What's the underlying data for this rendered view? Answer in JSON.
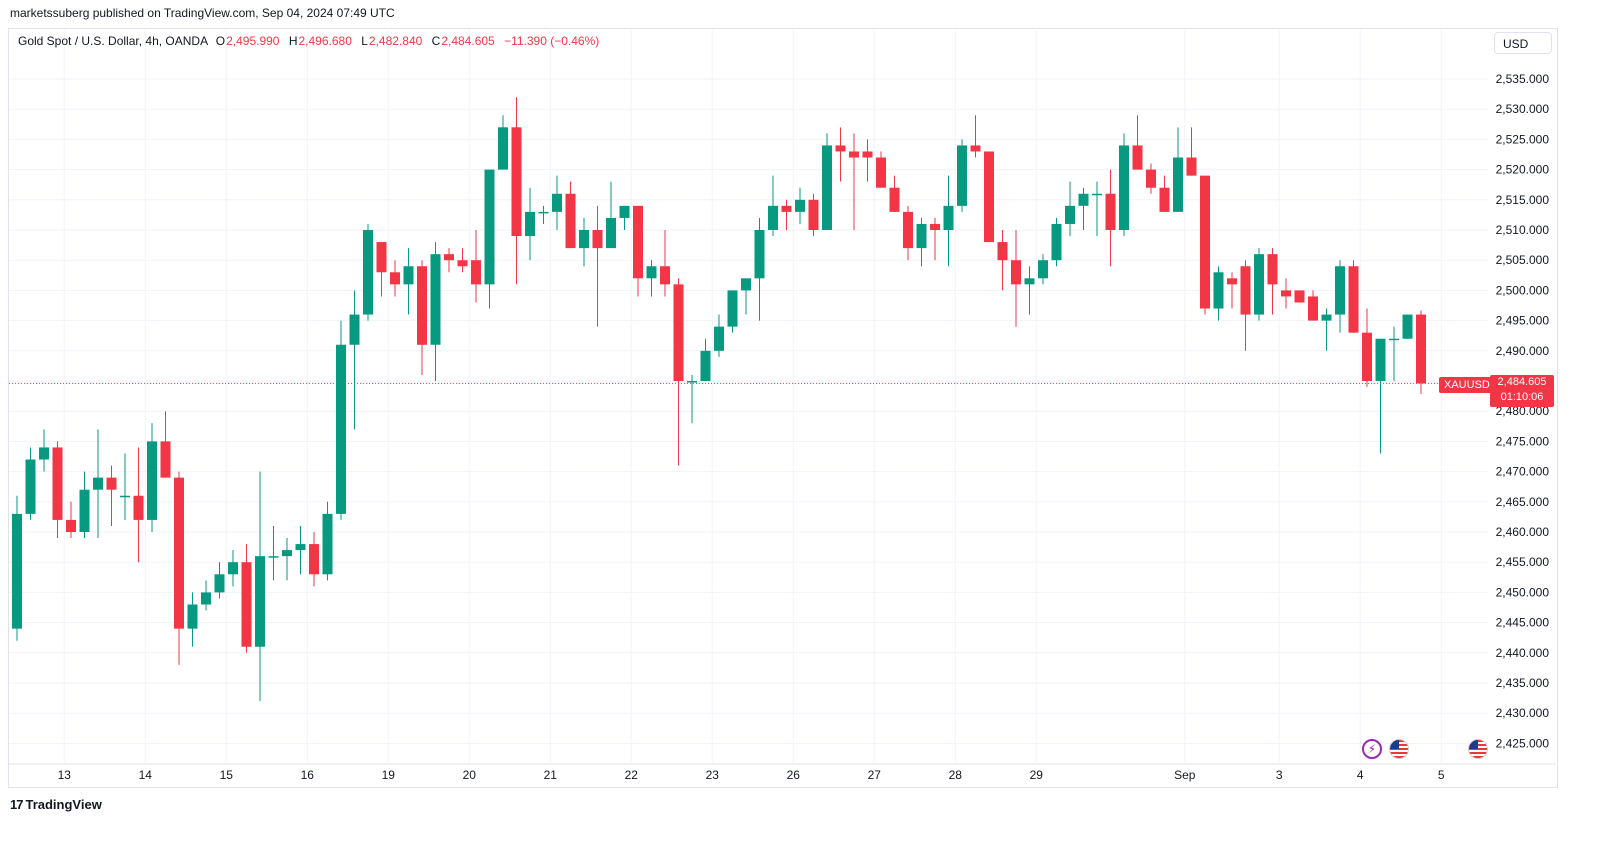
{
  "header": {
    "publisher_text": "marketssuberg published on TradingView.com, Sep 04, 2024 07:49 UTC"
  },
  "legend": {
    "symbol_text": "Gold Spot / U.S. Dollar, 4h, OANDA",
    "open_label": "O",
    "open_value": "2,495.990",
    "high_label": "H",
    "high_value": "2,496.680",
    "low_label": "L",
    "low_value": "2,482.840",
    "close_label": "C",
    "close_value": "2,484.605",
    "change_text": "−11.390 (−0.46%)"
  },
  "currency_selector": {
    "label": "USD"
  },
  "price_tag": {
    "symbol": "XAUUSD",
    "price": "2,484.605",
    "countdown": "01:10:06"
  },
  "events": {
    "flash_icon": "lightning-icon",
    "flag_icon": "us-flag-icon"
  },
  "footer": {
    "brand": "TradingView",
    "logo_icon": "tradingview-logo-icon",
    "logo_glyph": "17"
  },
  "colors": {
    "up": "#089981",
    "down": "#f23645",
    "grid": "#f0f3fa",
    "axis_text": "#131722"
  },
  "chart_data": {
    "type": "candlestick",
    "title": "Gold Spot / U.S. Dollar, 4h, OANDA",
    "ylabel": "USD",
    "ylim": [
      2422,
      2539
    ],
    "y_ticks": [
      2425,
      2430,
      2435,
      2440,
      2445,
      2450,
      2455,
      2460,
      2465,
      2470,
      2475,
      2480,
      2485,
      2490,
      2495,
      2500,
      2505,
      2510,
      2515,
      2520,
      2525,
      2530,
      2535
    ],
    "y_tick_labels": [
      "2,425.000",
      "2,430.000",
      "2,435.000",
      "2,440.000",
      "2,445.000",
      "2,450.000",
      "2,455.000",
      "2,460.000",
      "2,465.000",
      "2,470.000",
      "2,475.000",
      "2,480.000",
      "2,485.000",
      "2,490.000",
      "2,495.000",
      "2,500.000",
      "2,505.000",
      "2,510.000",
      "2,515.000",
      "2,520.000",
      "2,525.000",
      "2,530.000",
      "2,535.000"
    ],
    "x_ticks": [
      {
        "label": "13",
        "bar": 3.5
      },
      {
        "label": "14",
        "bar": 9.5
      },
      {
        "label": "15",
        "bar": 15.5
      },
      {
        "label": "16",
        "bar": 21.5
      },
      {
        "label": "19",
        "bar": 27.5
      },
      {
        "label": "20",
        "bar": 33.5
      },
      {
        "label": "21",
        "bar": 39.5
      },
      {
        "label": "22",
        "bar": 45.5
      },
      {
        "label": "23",
        "bar": 51.5
      },
      {
        "label": "26",
        "bar": 57.5
      },
      {
        "label": "27",
        "bar": 63.5
      },
      {
        "label": "28",
        "bar": 69.5
      },
      {
        "label": "29",
        "bar": 75.5
      },
      {
        "label": "Sep",
        "bar": 86.5
      },
      {
        "label": "3",
        "bar": 93.5
      },
      {
        "label": "4",
        "bar": 99.5
      },
      {
        "label": "5",
        "bar": 105.5
      }
    ],
    "last_price": 2484.605,
    "candles": [
      {
        "o": 2444,
        "h": 2466,
        "l": 2442,
        "c": 2463
      },
      {
        "o": 2463,
        "h": 2474,
        "l": 2462,
        "c": 2472
      },
      {
        "o": 2472,
        "h": 2477,
        "l": 2470,
        "c": 2474
      },
      {
        "o": 2474,
        "h": 2475,
        "l": 2459,
        "c": 2462
      },
      {
        "o": 2462,
        "h": 2465,
        "l": 2459,
        "c": 2460
      },
      {
        "o": 2460,
        "h": 2470,
        "l": 2459,
        "c": 2467
      },
      {
        "o": 2467,
        "h": 2477,
        "l": 2459,
        "c": 2469
      },
      {
        "o": 2469,
        "h": 2471,
        "l": 2461,
        "c": 2467
      },
      {
        "o": 2466,
        "h": 2473,
        "l": 2462,
        "c": 2466
      },
      {
        "o": 2466,
        "h": 2474,
        "l": 2455,
        "c": 2462
      },
      {
        "o": 2462,
        "h": 2478,
        "l": 2460,
        "c": 2475
      },
      {
        "o": 2475,
        "h": 2480,
        "l": 2469,
        "c": 2469
      },
      {
        "o": 2469,
        "h": 2470,
        "l": 2438,
        "c": 2444
      },
      {
        "o": 2444,
        "h": 2450,
        "l": 2441,
        "c": 2448
      },
      {
        "o": 2448,
        "h": 2452,
        "l": 2447,
        "c": 2450
      },
      {
        "o": 2450,
        "h": 2455,
        "l": 2449,
        "c": 2453
      },
      {
        "o": 2453,
        "h": 2457,
        "l": 2451,
        "c": 2455
      },
      {
        "o": 2455,
        "h": 2458,
        "l": 2440,
        "c": 2441
      },
      {
        "o": 2441,
        "h": 2470,
        "l": 2432,
        "c": 2456
      },
      {
        "o": 2456,
        "h": 2461,
        "l": 2452,
        "c": 2456
      },
      {
        "o": 2456,
        "h": 2459,
        "l": 2452,
        "c": 2457
      },
      {
        "o": 2457,
        "h": 2461,
        "l": 2453,
        "c": 2458
      },
      {
        "o": 2458,
        "h": 2460,
        "l": 2451,
        "c": 2453
      },
      {
        "o": 2453,
        "h": 2465,
        "l": 2452,
        "c": 2463
      },
      {
        "o": 2463,
        "h": 2495,
        "l": 2462,
        "c": 2491
      },
      {
        "o": 2491,
        "h": 2500,
        "l": 2477,
        "c": 2496
      },
      {
        "o": 2496,
        "h": 2511,
        "l": 2495,
        "c": 2510
      },
      {
        "o": 2508,
        "h": 2508,
        "l": 2499,
        "c": 2503
      },
      {
        "o": 2503,
        "h": 2505,
        "l": 2499,
        "c": 2501
      },
      {
        "o": 2501,
        "h": 2507,
        "l": 2496,
        "c": 2504
      },
      {
        "o": 2504,
        "h": 2505,
        "l": 2486,
        "c": 2491
      },
      {
        "o": 2491,
        "h": 2508,
        "l": 2485,
        "c": 2506
      },
      {
        "o": 2506,
        "h": 2507,
        "l": 2503,
        "c": 2505
      },
      {
        "o": 2505,
        "h": 2507,
        "l": 2503,
        "c": 2504
      },
      {
        "o": 2505,
        "h": 2510,
        "l": 2498,
        "c": 2501
      },
      {
        "o": 2501,
        "h": 2520,
        "l": 2497,
        "c": 2520
      },
      {
        "o": 2520,
        "h": 2529,
        "l": 2520,
        "c": 2527
      },
      {
        "o": 2527,
        "h": 2532,
        "l": 2501,
        "c": 2509
      },
      {
        "o": 2509,
        "h": 2517,
        "l": 2505,
        "c": 2513
      },
      {
        "o": 2513,
        "h": 2514,
        "l": 2511,
        "c": 2513
      },
      {
        "o": 2513,
        "h": 2519,
        "l": 2510,
        "c": 2516
      },
      {
        "o": 2516,
        "h": 2518,
        "l": 2507,
        "c": 2507
      },
      {
        "o": 2507,
        "h": 2512,
        "l": 2504,
        "c": 2510
      },
      {
        "o": 2510,
        "h": 2514,
        "l": 2494,
        "c": 2507
      },
      {
        "o": 2507,
        "h": 2518,
        "l": 2507,
        "c": 2512
      },
      {
        "o": 2512,
        "h": 2514,
        "l": 2510,
        "c": 2514
      },
      {
        "o": 2514,
        "h": 2514,
        "l": 2499,
        "c": 2502
      },
      {
        "o": 2502,
        "h": 2505,
        "l": 2499,
        "c": 2504
      },
      {
        "o": 2504,
        "h": 2510,
        "l": 2499,
        "c": 2501
      },
      {
        "o": 2501,
        "h": 2502,
        "l": 2471,
        "c": 2485
      },
      {
        "o": 2485,
        "h": 2486,
        "l": 2478,
        "c": 2485
      },
      {
        "o": 2485,
        "h": 2492,
        "l": 2485,
        "c": 2490
      },
      {
        "o": 2490,
        "h": 2496,
        "l": 2489,
        "c": 2494
      },
      {
        "o": 2494,
        "h": 2500,
        "l": 2493,
        "c": 2500
      },
      {
        "o": 2500,
        "h": 2502,
        "l": 2496,
        "c": 2502
      },
      {
        "o": 2502,
        "h": 2512,
        "l": 2495,
        "c": 2510
      },
      {
        "o": 2510,
        "h": 2519,
        "l": 2509,
        "c": 2514
      },
      {
        "o": 2514,
        "h": 2515,
        "l": 2510,
        "c": 2513
      },
      {
        "o": 2513,
        "h": 2517,
        "l": 2511,
        "c": 2515
      },
      {
        "o": 2515,
        "h": 2516,
        "l": 2509,
        "c": 2510
      },
      {
        "o": 2510,
        "h": 2526,
        "l": 2510,
        "c": 2524
      },
      {
        "o": 2524,
        "h": 2527,
        "l": 2518,
        "c": 2523
      },
      {
        "o": 2523,
        "h": 2526,
        "l": 2510,
        "c": 2522
      },
      {
        "o": 2523,
        "h": 2525,
        "l": 2518,
        "c": 2522
      },
      {
        "o": 2522,
        "h": 2523,
        "l": 2517,
        "c": 2517
      },
      {
        "o": 2517,
        "h": 2519,
        "l": 2513,
        "c": 2513
      },
      {
        "o": 2513,
        "h": 2514,
        "l": 2505,
        "c": 2507
      },
      {
        "o": 2507,
        "h": 2512,
        "l": 2504,
        "c": 2511
      },
      {
        "o": 2511,
        "h": 2512,
        "l": 2505,
        "c": 2510
      },
      {
        "o": 2510,
        "h": 2519,
        "l": 2504,
        "c": 2514
      },
      {
        "o": 2514,
        "h": 2525,
        "l": 2513,
        "c": 2524
      },
      {
        "o": 2524,
        "h": 2529,
        "l": 2522,
        "c": 2523
      },
      {
        "o": 2523,
        "h": 2523,
        "l": 2508,
        "c": 2508
      },
      {
        "o": 2508,
        "h": 2510,
        "l": 2500,
        "c": 2505
      },
      {
        "o": 2505,
        "h": 2510,
        "l": 2494,
        "c": 2501
      },
      {
        "o": 2501,
        "h": 2504,
        "l": 2496,
        "c": 2502
      },
      {
        "o": 2502,
        "h": 2506,
        "l": 2501,
        "c": 2505
      },
      {
        "o": 2505,
        "h": 2512,
        "l": 2504,
        "c": 2511
      },
      {
        "o": 2511,
        "h": 2518,
        "l": 2509,
        "c": 2514
      },
      {
        "o": 2514,
        "h": 2517,
        "l": 2510,
        "c": 2516
      },
      {
        "o": 2516,
        "h": 2518,
        "l": 2509,
        "c": 2516
      },
      {
        "o": 2516,
        "h": 2520,
        "l": 2504,
        "c": 2510
      },
      {
        "o": 2510,
        "h": 2526,
        "l": 2509,
        "c": 2524
      },
      {
        "o": 2524,
        "h": 2529,
        "l": 2520,
        "c": 2520
      },
      {
        "o": 2520,
        "h": 2521,
        "l": 2516,
        "c": 2517
      },
      {
        "o": 2517,
        "h": 2519,
        "l": 2513,
        "c": 2513
      },
      {
        "o": 2513,
        "h": 2527,
        "l": 2513,
        "c": 2522
      },
      {
        "o": 2522,
        "h": 2527,
        "l": 2519,
        "c": 2519
      },
      {
        "o": 2519,
        "h": 2519,
        "l": 2496,
        "c": 2497
      },
      {
        "o": 2497,
        "h": 2504,
        "l": 2495,
        "c": 2503
      },
      {
        "o": 2502,
        "h": 2503,
        "l": 2497,
        "c": 2501
      },
      {
        "o": 2504,
        "h": 2505,
        "l": 2490,
        "c": 2496
      },
      {
        "o": 2496,
        "h": 2507,
        "l": 2495,
        "c": 2506
      },
      {
        "o": 2506,
        "h": 2507,
        "l": 2496,
        "c": 2501
      },
      {
        "o": 2500,
        "h": 2502,
        "l": 2497,
        "c": 2499
      },
      {
        "o": 2500,
        "h": 2500,
        "l": 2498,
        "c": 2498
      },
      {
        "o": 2499,
        "h": 2500,
        "l": 2495,
        "c": 2495
      },
      {
        "o": 2495,
        "h": 2497,
        "l": 2490,
        "c": 2496
      },
      {
        "o": 2496,
        "h": 2505,
        "l": 2493,
        "c": 2504
      },
      {
        "o": 2504,
        "h": 2505,
        "l": 2493,
        "c": 2493
      },
      {
        "o": 2493,
        "h": 2497,
        "l": 2484,
        "c": 2485
      },
      {
        "o": 2485,
        "h": 2491,
        "l": 2473,
        "c": 2492
      },
      {
        "o": 2492,
        "h": 2494,
        "l": 2485,
        "c": 2492
      },
      {
        "o": 2492,
        "h": 2496,
        "l": 2492,
        "c": 2496
      },
      {
        "o": 2496,
        "h": 2496.68,
        "l": 2482.84,
        "c": 2484.605
      }
    ]
  }
}
